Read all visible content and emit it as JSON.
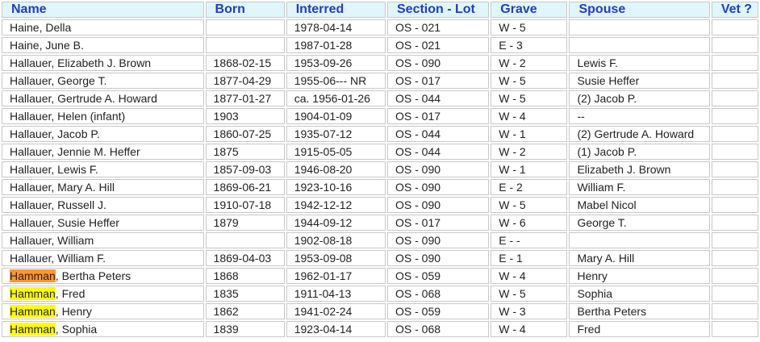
{
  "columns": [
    "Name",
    "Born",
    "Interred",
    "Section - Lot",
    "Grave",
    "Spouse",
    "Vet ?"
  ],
  "highlight_colors": {
    "yellow": "#ffff00",
    "orange": "#ff9632"
  },
  "rows": [
    {
      "name": "Haine, Della",
      "born": "",
      "interred": "1978-04-14",
      "section_lot": "OS - 021",
      "grave": "W - 5",
      "spouse": "",
      "vet": ""
    },
    {
      "name": "Haine, June B.",
      "born": "",
      "interred": "1987-01-28",
      "section_lot": "OS - 021",
      "grave": "E - 3",
      "spouse": "",
      "vet": ""
    },
    {
      "name": "Hallauer, Elizabeth J. Brown",
      "born": "1868-02-15",
      "interred": "1953-09-26",
      "section_lot": "OS - 090",
      "grave": "W - 2",
      "spouse": "Lewis F.",
      "vet": ""
    },
    {
      "name": "Hallauer, George T.",
      "born": "1877-04-29",
      "interred": "1955-06--- NR",
      "section_lot": "OS - 017",
      "grave": "W - 5",
      "spouse": "Susie Heffer",
      "vet": ""
    },
    {
      "name": "Hallauer, Gertrude A. Howard",
      "born": "1877-01-27",
      "interred": "ca. 1956-01-26",
      "section_lot": "OS - 044",
      "grave": "W - 5",
      "spouse": "(2) Jacob P.",
      "vet": ""
    },
    {
      "name": "Hallauer, Helen (infant)",
      "born": "1903",
      "interred": "1904-01-09",
      "section_lot": "OS - 017",
      "grave": "W - 4",
      "spouse": "--",
      "vet": ""
    },
    {
      "name": "Hallauer, Jacob P.",
      "born": "1860-07-25",
      "interred": "1935-07-12",
      "section_lot": "OS - 044",
      "grave": "W - 1",
      "spouse": "(2) Gertrude A. Howard",
      "vet": ""
    },
    {
      "name": "Hallauer, Jennie M. Heffer",
      "born": "1875",
      "interred": "1915-05-05",
      "section_lot": "OS - 044",
      "grave": "W - 2",
      "spouse": "(1) Jacob P.",
      "vet": ""
    },
    {
      "name": "Hallauer, Lewis F.",
      "born": "1857-09-03",
      "interred": "1946-08-20",
      "section_lot": "OS - 090",
      "grave": "W - 1",
      "spouse": "Elizabeth J. Brown",
      "vet": ""
    },
    {
      "name": "Hallauer, Mary A. Hill",
      "born": "1869-06-21",
      "interred": "1923-10-16",
      "section_lot": "OS - 090",
      "grave": "E - 2",
      "spouse": "William F.",
      "vet": ""
    },
    {
      "name": "Hallauer, Russell J.",
      "born": "1910-07-18",
      "interred": "1942-12-12",
      "section_lot": "OS - 090",
      "grave": "W - 5",
      "spouse": "Mabel Nicol",
      "vet": ""
    },
    {
      "name": "Hallauer, Susie Heffer",
      "born": "1879",
      "interred": "1944-09-12",
      "section_lot": "OS - 017",
      "grave": "W - 6",
      "spouse": "George T.",
      "vet": ""
    },
    {
      "name": "Hallauer, William",
      "born": "",
      "interred": "1902-08-18",
      "section_lot": "OS - 090",
      "grave": "E - -",
      "spouse": "",
      "vet": ""
    },
    {
      "name": "Hallauer, William F.",
      "born": "1869-04-03",
      "interred": "1953-09-08",
      "section_lot": "OS - 090",
      "grave": "E - 1",
      "spouse": "Mary A. Hill",
      "vet": ""
    },
    {
      "name_highlight": "Hamman",
      "name_rest": ", Bertha Peters",
      "highlight": "orange",
      "born": "1868",
      "interred": "1962-01-17",
      "section_lot": "OS - 059",
      "grave": "W - 4",
      "spouse": "Henry",
      "vet": ""
    },
    {
      "name_highlight": "Hamman",
      "name_rest": ", Fred",
      "highlight": "yellow",
      "born": "1835",
      "interred": "1911-04-13",
      "section_lot": "OS - 068",
      "grave": "W - 5",
      "spouse": "Sophia",
      "vet": ""
    },
    {
      "name_highlight": "Hamman",
      "name_rest": ", Henry",
      "highlight": "yellow",
      "born": "1862",
      "interred": "1941-02-24",
      "section_lot": "OS - 059",
      "grave": "W - 3",
      "spouse": "Bertha Peters",
      "vet": ""
    },
    {
      "name_highlight": "Hamman",
      "name_rest": ", Sophia",
      "highlight": "yellow",
      "born": "1839",
      "interred": "1923-04-14",
      "section_lot": "OS - 068",
      "grave": "W - 4",
      "spouse": "Fred",
      "vet": ""
    }
  ]
}
